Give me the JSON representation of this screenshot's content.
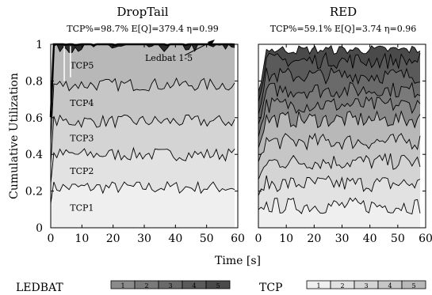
{
  "chart_data": [
    {
      "type": "area",
      "title": "DropTail",
      "subtitle": "TCP%=98.7% E[Q]=379.4 η=0.99",
      "xlabel": "Time [s]",
      "ylabel": "Cumulative Utilization",
      "xlim": [
        0,
        60
      ],
      "ylim": [
        0,
        1
      ],
      "xticks": [
        "0",
        "10",
        "20",
        "30",
        "40",
        "50",
        "60"
      ],
      "yticks": [
        "0",
        "0.2",
        "0.4",
        "0.6",
        "0.8",
        "1"
      ],
      "stack_labels": [
        "TCP1",
        "TCP2",
        "TCP3",
        "TCP4",
        "TCP5"
      ],
      "annotation": "Ledbat 1-5",
      "stacked": true,
      "approx_mean_cumulative": [
        0.22,
        0.4,
        0.58,
        0.78,
        0.99,
        1.0
      ],
      "colors": [
        "#efefef",
        "#e2e2e2",
        "#d4d4d4",
        "#c6c6c6",
        "#b8b8b8"
      ]
    },
    {
      "type": "area",
      "title": "RED",
      "subtitle": "TCP%=59.1% E[Q]=3.74 η=0.96",
      "xlabel": "Time [s]",
      "xlim": [
        0,
        60
      ],
      "ylim": [
        0,
        1
      ],
      "xticks": [
        "0",
        "10",
        "20",
        "30",
        "40",
        "50",
        "60"
      ],
      "stacked": true,
      "approx_mean_cumulative": [
        0.12,
        0.24,
        0.36,
        0.47,
        0.59,
        0.67,
        0.75,
        0.83,
        0.91,
        0.97
      ],
      "colors": [
        "#efefef",
        "#e2e2e2",
        "#d4d4d4",
        "#c6c6c6",
        "#b8b8b8",
        "#8a8a8a",
        "#7a7a7a",
        "#6a6a6a",
        "#5a5a5a",
        "#4a4a4a"
      ]
    }
  ],
  "legend": {
    "ledbat_label": "LEDBAT",
    "tcp_label": "TCP",
    "ledbat_boxes": [
      "1",
      "2",
      "3",
      "4",
      "5"
    ],
    "tcp_boxes": [
      "1",
      "2",
      "3",
      "4",
      "5"
    ],
    "ledbat_colors": [
      "#8a8a8a",
      "#7a7a7a",
      "#6a6a6a",
      "#5a5a5a",
      "#4a4a4a"
    ],
    "tcp_colors": [
      "#efefef",
      "#e2e2e2",
      "#d4d4d4",
      "#c6c6c6",
      "#b8b8b8"
    ]
  }
}
